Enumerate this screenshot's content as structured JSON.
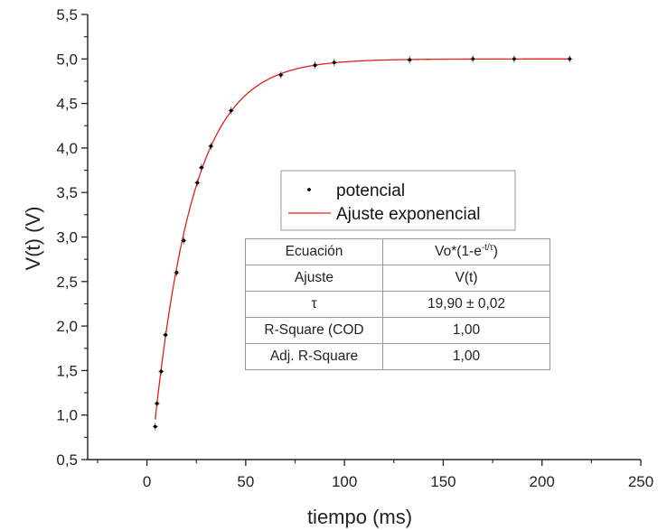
{
  "chart_data": {
    "type": "scatter",
    "xlabel": "tiempo (ms)",
    "ylabel": "V(t) (V)",
    "xlim": [
      -30,
      250
    ],
    "ylim": [
      0.5,
      5.5
    ],
    "x_ticks": [
      "0",
      "50",
      "100",
      "150",
      "200",
      "250"
    ],
    "y_ticks": [
      "0,5",
      "1,0",
      "1,5",
      "2,0",
      "2,5",
      "3,0",
      "3,5",
      "4,0",
      "4,5",
      "5,0",
      "5,5"
    ],
    "grid": false,
    "series": [
      {
        "name": "potencial",
        "kind": "points",
        "color": "#000000",
        "x": [
          4.2,
          5.1,
          7.2,
          9.4,
          15,
          18.6,
          25.5,
          27.6,
          32.4,
          42.6,
          67.8,
          85.1,
          94.8,
          133,
          165,
          185.9,
          214
        ],
        "y": [
          0.87,
          1.13,
          1.49,
          1.9,
          2.6,
          2.96,
          3.61,
          3.78,
          4.02,
          4.42,
          4.82,
          4.93,
          4.96,
          4.99,
          5.0,
          5.0,
          5.0
        ]
      },
      {
        "name": "Ajuste exponencial",
        "kind": "line",
        "color": "#e0201b",
        "model": "Vo*(1-e^(-t/tau))",
        "Vo": 5.0,
        "tau": 19.9,
        "x_range": [
          4.2,
          214
        ]
      }
    ],
    "legend_position": "center",
    "fit_table": [
      {
        "label": "Ecuación",
        "value": "Vo*(1-e",
        "value_sup": "-t/τ",
        "value_tail": ")"
      },
      {
        "label": "Ajuste",
        "value": "V(t)"
      },
      {
        "label": "τ",
        "value": "19,90 ± 0,02"
      },
      {
        "label": "R-Square (COD",
        "value": "1,00"
      },
      {
        "label": "Adj. R-Square",
        "value": "1,00"
      }
    ]
  }
}
